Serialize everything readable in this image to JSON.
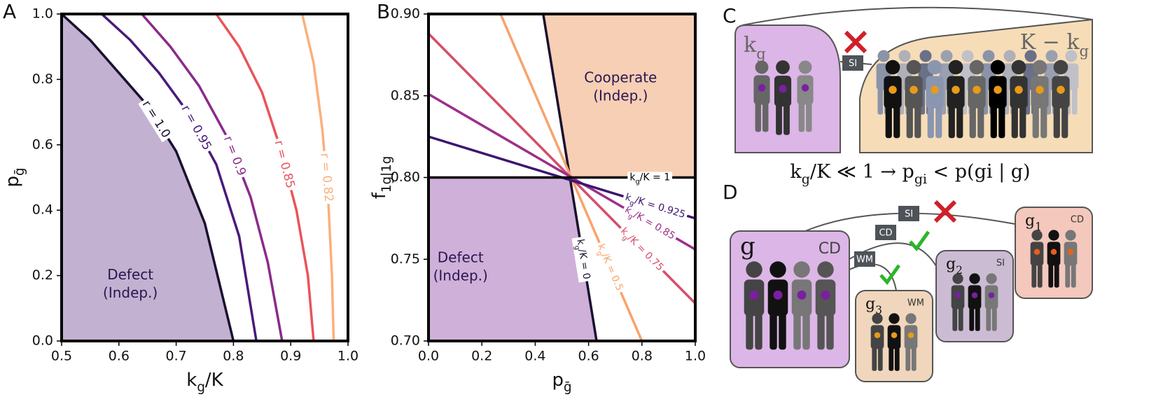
{
  "chart_data": [
    {
      "type": "line",
      "panel": "A",
      "xlabel": [
        "k",
        "g",
        "/K"
      ],
      "ylabel": [
        "p",
        "ḡ"
      ],
      "xlim": [
        0.5,
        1.0
      ],
      "ylim": [
        0,
        1
      ],
      "xticks": [
        0.5,
        0.6,
        0.7,
        0.8,
        0.9,
        {
          "value": 1,
          "label": "1.0"
        }
      ],
      "yticks": [
        {
          "value": 0,
          "label": "0.0"
        },
        0.2,
        0.4,
        0.6,
        0.8,
        {
          "value": 1,
          "label": "1.0"
        }
      ],
      "region": {
        "name": [
          "Defect",
          "(Indep.)"
        ],
        "color": "#c3b1d1"
      },
      "series": [
        {
          "name": "r = 1.0",
          "color": "#1a1030",
          "x": [
            0.5,
            0.55,
            0.6,
            0.65,
            0.7,
            0.75,
            0.8
          ],
          "values": [
            1.0,
            0.92,
            0.82,
            0.72,
            0.58,
            0.36,
            0.0
          ]
        },
        {
          "name": "r = 0.95",
          "color": "#4a1a7a",
          "x": [
            0.57,
            0.62,
            0.67,
            0.72,
            0.77,
            0.81,
            0.84
          ],
          "values": [
            1.0,
            0.92,
            0.82,
            0.7,
            0.54,
            0.32,
            0.0
          ]
        },
        {
          "name": "r = 0.9",
          "color": "#8a2a8a",
          "x": [
            0.64,
            0.69,
            0.74,
            0.79,
            0.83,
            0.86,
            0.885
          ],
          "values": [
            1.0,
            0.9,
            0.78,
            0.62,
            0.44,
            0.24,
            0.0
          ]
        },
        {
          "name": "r = 0.85",
          "color": "#e8545a",
          "x": [
            0.77,
            0.81,
            0.85,
            0.88,
            0.91,
            0.93,
            0.94
          ],
          "values": [
            1.0,
            0.9,
            0.76,
            0.6,
            0.4,
            0.2,
            0.0
          ]
        },
        {
          "name": "r = 0.82",
          "color": "#fbb07a",
          "x": [
            0.92,
            0.94,
            0.955,
            0.965,
            0.972,
            0.975
          ],
          "values": [
            1.0,
            0.85,
            0.65,
            0.45,
            0.2,
            0.0
          ]
        }
      ]
    },
    {
      "type": "line",
      "panel": "B",
      "xlabel": [
        "p",
        "ḡ"
      ],
      "ylabel": [
        "f",
        "1g|1g"
      ],
      "xlim": [
        0,
        1.0
      ],
      "ylim": [
        0.7,
        0.9
      ],
      "xticks": [
        {
          "value": 0,
          "label": "0.0"
        },
        0.2,
        0.4,
        0.6,
        0.8,
        {
          "value": 1,
          "label": "1.0"
        }
      ],
      "yticks": [
        {
          "value": 0.7,
          "label": "0.70"
        },
        0.75,
        {
          "value": 0.8,
          "label": "0.80"
        },
        0.85,
        {
          "value": 0.9,
          "label": "0.90"
        }
      ],
      "regions": [
        {
          "name": [
            "Cooperate",
            "(Indep.)"
          ],
          "color": "#f6cfb4",
          "x": [
            0.43,
            1.0,
            1.0,
            0.53
          ],
          "y": [
            0.9,
            0.9,
            0.8,
            0.8
          ]
        },
        {
          "name": [
            "Defect",
            "(Indep.)"
          ],
          "color": "#cfb0d9",
          "x": [
            0,
            0.53,
            0.63,
            0
          ],
          "y": [
            0.8,
            0.8,
            0.7,
            0.7
          ]
        }
      ],
      "series": [
        {
          "name": [
            "k",
            "g",
            "/K = 0"
          ],
          "color": "#1a1030",
          "x": [
            0.43,
            0.63
          ],
          "values": [
            0.9,
            0.7
          ]
        },
        {
          "name": [
            "k",
            "g",
            "/K = 0.5"
          ],
          "color": "#f9a36a",
          "x": [
            0.27,
            0.8
          ],
          "values": [
            0.9,
            0.7
          ]
        },
        {
          "name": [
            "k",
            "g",
            "/K = 0.75"
          ],
          "color": "#d64c6a",
          "x": [
            0,
            1.0
          ],
          "values": [
            0.888,
            0.723
          ]
        },
        {
          "name": [
            "k",
            "g",
            "/K = 0.85"
          ],
          "color": "#9b2f8a",
          "x": [
            0,
            1.0
          ],
          "values": [
            0.851,
            0.756
          ]
        },
        {
          "name": [
            "k",
            "g",
            "/K = 0.925"
          ],
          "color": "#3b1670",
          "x": [
            0,
            1.0
          ],
          "values": [
            0.825,
            0.775
          ]
        },
        {
          "name": [
            "k",
            "g",
            "/K = 1"
          ],
          "color": "#000000",
          "x": [
            0,
            1.0
          ],
          "values": [
            0.8,
            0.8
          ]
        }
      ]
    }
  ],
  "diagram": {
    "panel_c": "C",
    "panel_d": "D",
    "kg": [
      "k",
      "g"
    ],
    "rest": [
      "K − k",
      "g"
    ],
    "link": "SI",
    "equation": [
      "k",
      "g",
      "/K ≪ 1 → p",
      "gi",
      " < p(gi | g)"
    ],
    "groups": [
      {
        "name": [
          "g"
        ],
        "tag": "CD"
      },
      {
        "name": [
          "g",
          "3"
        ],
        "tag": "WM"
      },
      {
        "name": [
          "g",
          "2"
        ],
        "tag": "SI"
      },
      {
        "name": [
          "g",
          "1"
        ],
        "tag": "CD"
      }
    ],
    "links": [
      "SI",
      "CD",
      "WM"
    ]
  }
}
